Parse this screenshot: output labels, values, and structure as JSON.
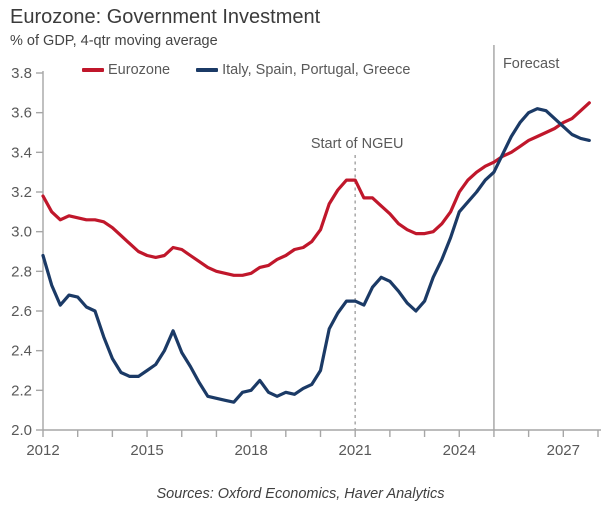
{
  "header": {
    "title": "Eurozone: Government Investment",
    "subtitle": "% of GDP, 4-qtr moving average"
  },
  "legend": [
    {
      "label": "Eurozone",
      "color": "#c0172b"
    },
    {
      "label": "Italy, Spain, Portugal, Greece",
      "color": "#1b3a66"
    }
  ],
  "source": "Sources: Oxford Economics, Haver Analytics",
  "chart_data": {
    "type": "line",
    "title": "Eurozone: Government Investment",
    "subtitle": "% of GDP, 4-qtr moving average",
    "xlabel": "",
    "ylabel": "% of GDP",
    "xlim": [
      2012,
      2028
    ],
    "ylim": [
      2.0,
      3.8
    ],
    "ytick_interval": 0.2,
    "xtick_minor_interval": 1,
    "xticks_labeled": [
      2012,
      2015,
      2018,
      2021,
      2024,
      2027
    ],
    "grid": false,
    "legend_position": "top",
    "vlines": [
      {
        "x": 2021,
        "style": "dashed",
        "label": "Start of NGEU"
      },
      {
        "x": 2025,
        "style": "solid",
        "label": "Forecast"
      }
    ],
    "x": [
      2012.0,
      2012.25,
      2012.5,
      2012.75,
      2013.0,
      2013.25,
      2013.5,
      2013.75,
      2014.0,
      2014.25,
      2014.5,
      2014.75,
      2015.0,
      2015.25,
      2015.5,
      2015.75,
      2016.0,
      2016.25,
      2016.5,
      2016.75,
      2017.0,
      2017.25,
      2017.5,
      2017.75,
      2018.0,
      2018.25,
      2018.5,
      2018.75,
      2019.0,
      2019.25,
      2019.5,
      2019.75,
      2020.0,
      2020.25,
      2020.5,
      2020.75,
      2021.0,
      2021.25,
      2021.5,
      2021.75,
      2022.0,
      2022.25,
      2022.5,
      2022.75,
      2023.0,
      2023.25,
      2023.5,
      2023.75,
      2024.0,
      2024.25,
      2024.5,
      2024.75,
      2025.0,
      2025.25,
      2025.5,
      2025.75,
      2026.0,
      2026.25,
      2026.5,
      2026.75,
      2027.0,
      2027.25,
      2027.5,
      2027.75
    ],
    "series": [
      {
        "name": "Eurozone",
        "color": "#c0172b",
        "values": [
          3.18,
          3.1,
          3.06,
          3.08,
          3.07,
          3.06,
          3.06,
          3.05,
          3.02,
          2.98,
          2.94,
          2.9,
          2.88,
          2.87,
          2.88,
          2.92,
          2.91,
          2.88,
          2.85,
          2.82,
          2.8,
          2.79,
          2.78,
          2.78,
          2.79,
          2.82,
          2.83,
          2.86,
          2.88,
          2.91,
          2.92,
          2.95,
          3.01,
          3.14,
          3.21,
          3.26,
          3.26,
          3.17,
          3.17,
          3.13,
          3.09,
          3.04,
          3.01,
          2.99,
          2.99,
          3.0,
          3.04,
          3.1,
          3.2,
          3.26,
          3.3,
          3.33,
          3.35,
          3.38,
          3.4,
          3.43,
          3.46,
          3.48,
          3.5,
          3.52,
          3.55,
          3.57,
          3.61,
          3.65
        ]
      },
      {
        "name": "Italy, Spain, Portugal, Greece",
        "color": "#1b3a66",
        "values": [
          2.88,
          2.73,
          2.63,
          2.68,
          2.67,
          2.62,
          2.6,
          2.47,
          2.36,
          2.29,
          2.27,
          2.27,
          2.3,
          2.33,
          2.4,
          2.5,
          2.39,
          2.32,
          2.24,
          2.17,
          2.16,
          2.15,
          2.14,
          2.19,
          2.2,
          2.25,
          2.19,
          2.17,
          2.19,
          2.18,
          2.21,
          2.23,
          2.3,
          2.51,
          2.59,
          2.65,
          2.65,
          2.63,
          2.72,
          2.77,
          2.75,
          2.7,
          2.64,
          2.6,
          2.65,
          2.77,
          2.86,
          2.97,
          3.1,
          3.15,
          3.2,
          3.26,
          3.3,
          3.39,
          3.48,
          3.55,
          3.6,
          3.62,
          3.61,
          3.57,
          3.53,
          3.49,
          3.47,
          3.46
        ]
      }
    ]
  }
}
